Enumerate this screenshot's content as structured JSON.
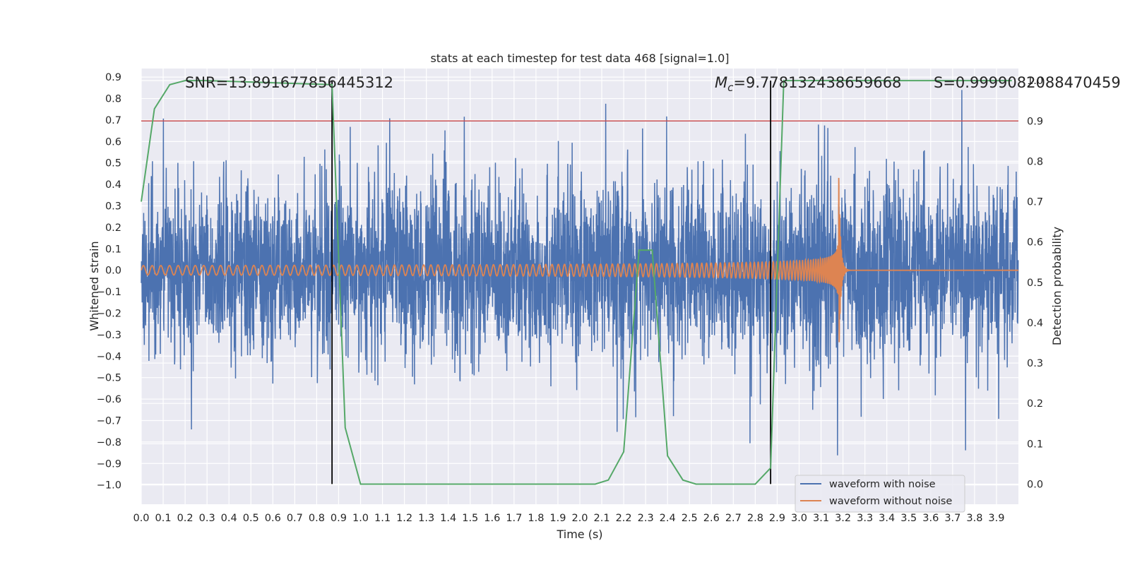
{
  "chart_data": {
    "type": "line",
    "title": "stats at each timestep for test data 468 [signal=1.0]",
    "xlabel": "Time (s)",
    "ylabel": "Whitened strain",
    "y2label": "Detection probability",
    "xlim": [
      0.0,
      4.0
    ],
    "ylim": [
      -1.09,
      0.94
    ],
    "y2lim": [
      -0.05,
      1.03
    ],
    "x_ticks": [
      "0.0",
      "0.1",
      "0.2",
      "0.3",
      "0.4",
      "0.5",
      "0.6",
      "0.7",
      "0.8",
      "0.9",
      "1.0",
      "1.1",
      "1.2",
      "1.3",
      "1.4",
      "1.5",
      "1.6",
      "1.7",
      "1.8",
      "1.9",
      "2.0",
      "2.1",
      "2.2",
      "2.3",
      "2.4",
      "2.5",
      "2.6",
      "2.7",
      "2.8",
      "2.9",
      "3.0",
      "3.1",
      "3.2",
      "3.3",
      "3.4",
      "3.5",
      "3.6",
      "3.7",
      "3.8",
      "3.9"
    ],
    "y_ticks": [
      "0.9",
      "0.8",
      "0.7",
      "0.6",
      "0.5",
      "0.4",
      "0.3",
      "0.2",
      "0.1",
      "0.0",
      "−0.1",
      "−0.2",
      "−0.3",
      "−0.4",
      "−0.5",
      "−0.6",
      "−0.7",
      "−0.8",
      "−0.9",
      "−1.0"
    ],
    "y2_ticks": [
      "1.0",
      "0.9",
      "0.8",
      "0.7",
      "0.6",
      "0.5",
      "0.4",
      "0.3",
      "0.2",
      "0.1",
      "0.0"
    ],
    "grid": true,
    "legend_position": "lower-right",
    "annotations": {
      "snr": "SNR=13.891677856445312",
      "mc_prefix": "M",
      "mc_sub": "c",
      "mc_value": "=9.778132438659668",
      "s": "S=0.9999082088470459"
    },
    "threshold": 0.9,
    "markers_x": [
      0.87,
      2.87
    ],
    "series": [
      {
        "name": "waveform with noise",
        "color": "#4c72b0",
        "kind": "noise",
        "amplitude_range": [
          -1.0,
          0.84
        ]
      },
      {
        "name": "waveform without noise",
        "color": "#dd8452",
        "kind": "chirp",
        "merger_time": 3.18,
        "peak_amplitude": 0.54
      }
    ],
    "detection_probability": {
      "color": "#55a868",
      "x": [
        0.0,
        0.06,
        0.13,
        0.2,
        0.3,
        0.87,
        0.93,
        1.0,
        1.07,
        2.07,
        2.13,
        2.2,
        2.27,
        2.33,
        2.4,
        2.47,
        2.53,
        2.6,
        2.67,
        2.8,
        2.87,
        2.93,
        3.0,
        3.97
      ],
      "y": [
        0.7,
        0.93,
        0.99,
        1.0,
        1.0,
        0.99,
        0.14,
        0.0,
        0.0,
        0.0,
        0.01,
        0.08,
        0.58,
        0.58,
        0.07,
        0.01,
        0.0,
        0.0,
        0.0,
        0.0,
        0.04,
        1.0,
        1.0,
        1.0
      ]
    },
    "colors": {
      "background": "#eaeaf2",
      "grid": "#ffffff",
      "threshold": "#c44e52",
      "marker": "#000000"
    }
  }
}
